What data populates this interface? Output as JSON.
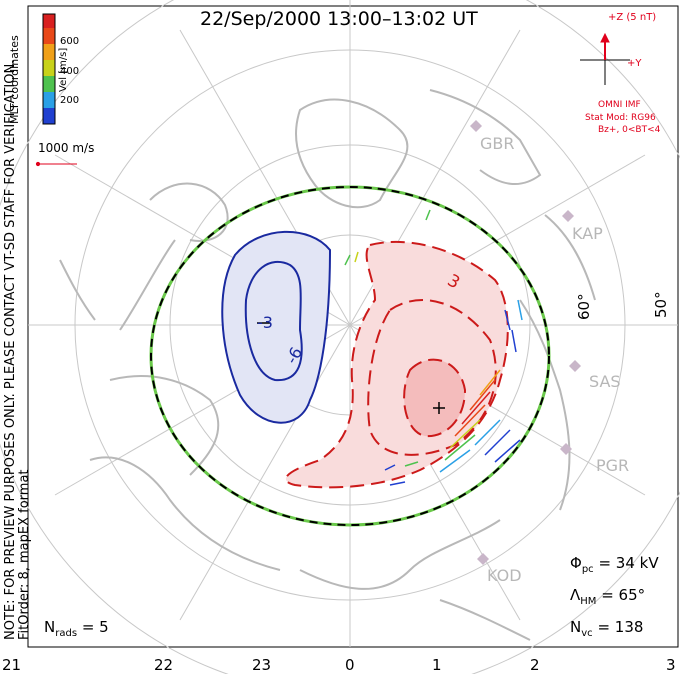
{
  "title": "22/Sep/2000 13:00–13:02 UT",
  "coordinates_label": "MLT coordinates",
  "colorbar": {
    "label": "Vel [m/s]",
    "ticks": [
      "600",
      "400",
      "200"
    ],
    "colors": [
      "#2040d0",
      "#2aa0e6",
      "#4ec24e",
      "#c8d21a",
      "#f0a018",
      "#e84818",
      "#d82020"
    ]
  },
  "velocity_scale": "1000 m/s",
  "imf": {
    "z_label": "+Z (5 nT)",
    "y_label": "+Y",
    "source": "OMNI IMF",
    "model": "Stat Mod: RG96",
    "condition": "Bz+, 0<BT<4"
  },
  "stations": [
    "GBR",
    "KAP",
    "SAS",
    "PGR",
    "KOD"
  ],
  "latitude_labels": [
    "60°",
    "50°"
  ],
  "contour_labels": [
    "-3",
    "-6",
    "3"
  ],
  "note_line1": "NOTE: FOR PREVIEW PURPOSES ONLY. PLEASE CONTACT VT-SD STAFF FOR VERIFICATION.",
  "note_line2": "FitOrder: 8, mapEX format",
  "stats": {
    "phi_symbol": "Φ",
    "phi_sub": "pc",
    "phi_value": "= 34 kV",
    "lambda_symbol": "Λ",
    "lambda_sub": "HM",
    "lambda_value": "= 65°",
    "nvc_symbol": "N",
    "nvc_sub": "vc",
    "nvc_value": "= 138",
    "nrads_symbol": "N",
    "nrads_sub": "rads",
    "nrads_value": "= 5"
  },
  "mlt_labels": [
    "21",
    "22",
    "23",
    "0",
    "1",
    "2",
    "3"
  ],
  "colors": {
    "negative_contour": "#1a2aa0",
    "positive_contour": "#cc1a1a",
    "negative_fill": "#e2e5f5",
    "positive_fill": "#f9dcdc",
    "coastline": "#b8b8b8",
    "grid": "#c8c8c8"
  }
}
